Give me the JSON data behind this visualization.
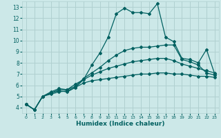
{
  "title": "",
  "xlabel": "Humidex (Indice chaleur)",
  "bg_color": "#cce8e8",
  "grid_color": "#b0d0d0",
  "line_color": "#006060",
  "xlim": [
    -0.5,
    23.5
  ],
  "ylim": [
    3.5,
    13.5
  ],
  "xticks": [
    0,
    1,
    2,
    3,
    4,
    5,
    6,
    7,
    8,
    9,
    10,
    11,
    12,
    13,
    14,
    15,
    16,
    17,
    18,
    19,
    20,
    21,
    22,
    23
  ],
  "yticks": [
    4,
    5,
    6,
    7,
    8,
    9,
    10,
    11,
    12,
    13
  ],
  "line1_x": [
    0,
    1,
    2,
    3,
    4,
    5,
    6,
    7,
    8,
    9,
    10,
    11,
    12,
    13,
    14,
    15,
    16,
    17,
    18,
    19,
    20,
    21,
    22,
    23
  ],
  "line1_y": [
    4.3,
    3.8,
    5.0,
    5.3,
    5.5,
    5.4,
    5.8,
    6.5,
    7.8,
    8.9,
    10.3,
    12.4,
    12.9,
    12.5,
    12.5,
    12.4,
    13.3,
    10.3,
    9.9,
    8.4,
    8.3,
    8.0,
    9.2,
    7.0
  ],
  "line2_x": [
    0,
    1,
    2,
    3,
    4,
    5,
    6,
    7,
    8,
    9,
    10,
    11,
    12,
    13,
    14,
    15,
    16,
    17,
    18,
    19,
    20,
    21,
    22,
    23
  ],
  "line2_y": [
    4.3,
    3.8,
    5.0,
    5.4,
    5.7,
    5.6,
    5.9,
    6.6,
    7.1,
    7.6,
    8.2,
    8.7,
    9.1,
    9.3,
    9.4,
    9.4,
    9.5,
    9.6,
    9.6,
    8.3,
    8.1,
    7.8,
    7.1,
    6.9
  ],
  "line3_x": [
    0,
    1,
    2,
    3,
    4,
    5,
    6,
    7,
    8,
    9,
    10,
    11,
    12,
    13,
    14,
    15,
    16,
    17,
    18,
    19,
    20,
    21,
    22,
    23
  ],
  "line3_y": [
    4.3,
    3.8,
    5.0,
    5.3,
    5.6,
    5.6,
    6.1,
    6.5,
    6.9,
    7.2,
    7.5,
    7.7,
    7.9,
    8.1,
    8.2,
    8.3,
    8.4,
    8.4,
    8.2,
    7.9,
    7.7,
    7.5,
    7.3,
    7.1
  ],
  "line4_x": [
    0,
    1,
    2,
    3,
    4,
    5,
    6,
    7,
    8,
    9,
    10,
    11,
    12,
    13,
    14,
    15,
    16,
    17,
    18,
    19,
    20,
    21,
    22,
    23
  ],
  "line4_y": [
    4.3,
    3.8,
    5.0,
    5.2,
    5.4,
    5.5,
    5.8,
    6.2,
    6.4,
    6.5,
    6.6,
    6.7,
    6.8,
    6.9,
    7.0,
    7.0,
    7.1,
    7.1,
    7.0,
    7.0,
    6.9,
    6.8,
    6.8,
    6.7
  ]
}
